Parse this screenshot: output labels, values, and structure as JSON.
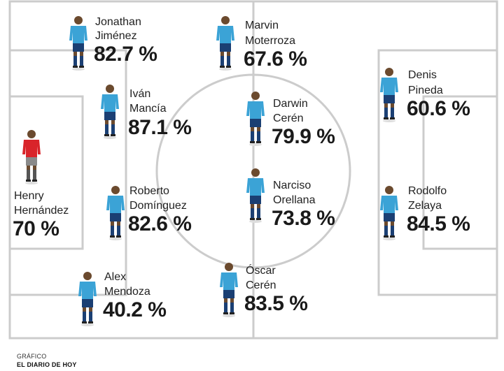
{
  "credit": {
    "line1": "GRÁFICO",
    "line2": "EL DIARIO DE HOY"
  },
  "colors": {
    "kit_outfield": "#3ba3d6",
    "kit_keeper": "#d9242a",
    "shorts": "#1b3f73",
    "socks": "#1b3f73",
    "skin": "#6b4a2e",
    "lines": "#cccccc"
  },
  "players": [
    {
      "id": "jonathan-jimenez",
      "name1": "Jonathan",
      "name2": "Jiménez",
      "pct": "82.7 %",
      "role": "outfield"
    },
    {
      "id": "marvin-moterroza",
      "name1": "Marvin",
      "name2": "Moterroza",
      "pct": "67.6 %",
      "role": "outfield"
    },
    {
      "id": "ivan-mancia",
      "name1": "Iván",
      "name2": "Mancía",
      "pct": "87.1 %",
      "role": "outfield"
    },
    {
      "id": "darwin-ceren",
      "name1": "Darwin",
      "name2": "Cerén",
      "pct": "79.9 %",
      "role": "outfield"
    },
    {
      "id": "denis-pineda",
      "name1": "Denis",
      "name2": "Pineda",
      "pct": "60.6 %",
      "role": "outfield"
    },
    {
      "id": "henry-hernandez",
      "name1": "Henry",
      "name2": "Hernández",
      "pct": "70 %",
      "role": "keeper"
    },
    {
      "id": "roberto-dominguez",
      "name1": "Roberto",
      "name2": "Domínguez",
      "pct": "82.6 %",
      "role": "outfield"
    },
    {
      "id": "narciso-orellana",
      "name1": "Narciso",
      "name2": "Orellana",
      "pct": "73.8 %",
      "role": "outfield"
    },
    {
      "id": "rodolfo-zelaya",
      "name1": "Rodolfo",
      "name2": "Zelaya",
      "pct": "84.5 %",
      "role": "outfield"
    },
    {
      "id": "alex-mendoza",
      "name1": "Alex",
      "name2": "Mendoza",
      "pct": "40.2 %",
      "role": "outfield"
    },
    {
      "id": "oscar-ceren",
      "name1": "Óscar",
      "name2": "Cerén",
      "pct": "83.5 %",
      "role": "outfield"
    }
  ]
}
